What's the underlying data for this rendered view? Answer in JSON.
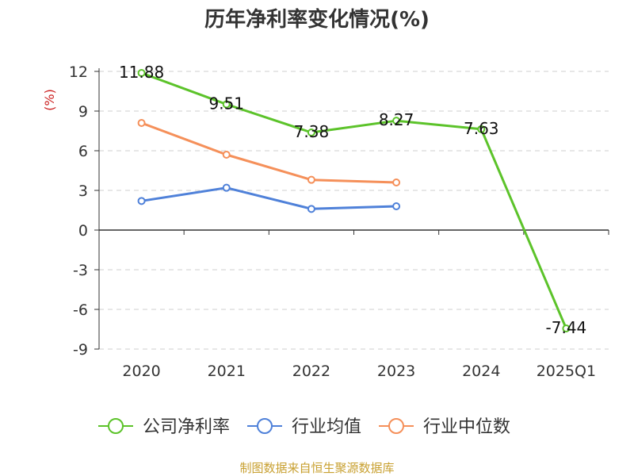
{
  "title": "历年净利率变化情况(%)",
  "source": "制图数据来自恒生聚源数据库",
  "chart_data": {
    "type": "line",
    "title": "历年净利率变化情况(%)",
    "ylabel": "(%)",
    "xlabel": "",
    "categories": [
      "2020",
      "2021",
      "2022",
      "2023",
      "2024",
      "2025Q1"
    ],
    "ylim": [
      -9,
      12
    ],
    "yticks": [
      12,
      9,
      6,
      3,
      0,
      -3,
      -6,
      -9
    ],
    "ytick_labels": [
      "12",
      "9",
      "6",
      "3",
      "0",
      "-3",
      "-6",
      "-9"
    ],
    "grid": true,
    "legend_position": "bottom",
    "series": [
      {
        "name": "公司净利率",
        "color": "#5cc32a",
        "values": [
          11.88,
          9.51,
          7.38,
          8.27,
          7.63,
          -7.44
        ],
        "labels": [
          "11.88",
          "9.51",
          "7.38",
          "8.27",
          "7.63",
          "-7.44"
        ]
      },
      {
        "name": "行业均值",
        "color": "#4f81d9",
        "values": [
          2.2,
          3.2,
          1.6,
          1.8,
          null,
          null
        ]
      },
      {
        "name": "行业中位数",
        "color": "#f5905a",
        "values": [
          8.1,
          5.7,
          3.8,
          3.6,
          null,
          null
        ]
      }
    ]
  }
}
